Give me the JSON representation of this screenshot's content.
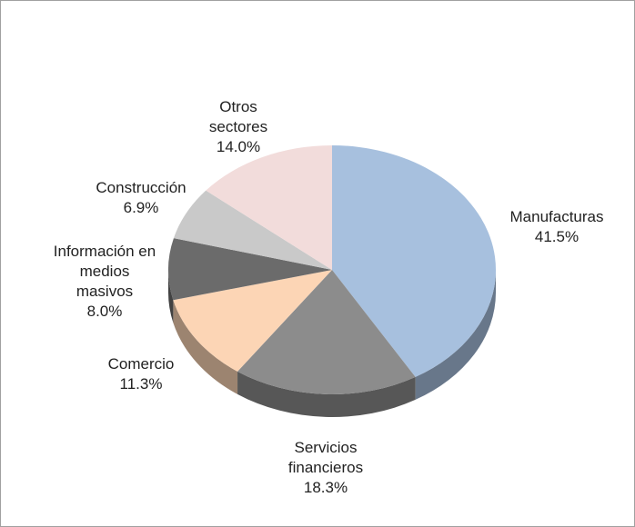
{
  "chart_data": {
    "type": "pie",
    "categories": [
      "Manufacturas",
      "Servicios financieros",
      "Comercio",
      "Información en medios masivos",
      "Construcción",
      "Otros sectores"
    ],
    "values": [
      41.5,
      18.3,
      11.3,
      8.0,
      6.9,
      14.0
    ],
    "value_labels": [
      "41.5%",
      "18.3%",
      "11.3%",
      "8.0%",
      "6.9%",
      "14.0%"
    ],
    "colors": [
      "#a7c0de",
      "#8c8c8c",
      "#fcd5b5",
      "#6b6b6b",
      "#c9c9c9",
      "#f2dcdb"
    ]
  }
}
